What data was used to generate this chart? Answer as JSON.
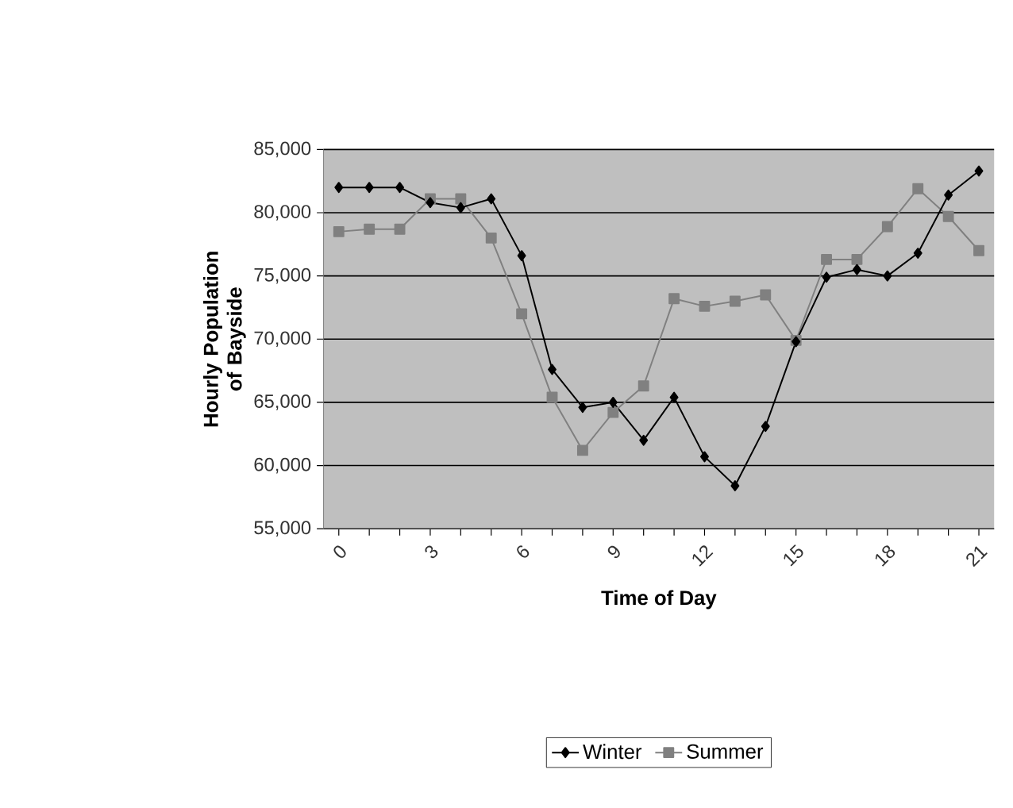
{
  "chart_data": {
    "type": "line",
    "xlabel": "Time of Day",
    "ylabel": "Hourly Population of Bayside",
    "categories": [
      "0",
      null,
      null,
      "3",
      null,
      null,
      "6",
      null,
      null,
      "9",
      null,
      null,
      "12",
      null,
      null,
      "15",
      null,
      null,
      "18",
      null,
      null,
      "21"
    ],
    "series": [
      {
        "name": "Winter",
        "color": "#000000",
        "marker": "diamond",
        "values": [
          82000,
          82000,
          82000,
          80800,
          80400,
          81100,
          76600,
          67600,
          64600,
          65000,
          62000,
          65400,
          60700,
          58400,
          63100,
          69800,
          74900,
          75500,
          75000,
          76800,
          81400,
          83300
        ]
      },
      {
        "name": "Summer",
        "color": "#808080",
        "marker": "square",
        "values": [
          78500,
          78700,
          78700,
          81100,
          81100,
          78000,
          72000,
          65400,
          61200,
          64200,
          66300,
          73200,
          72600,
          73000,
          73500,
          69900,
          76300,
          76300,
          78900,
          81900,
          79700,
          77000
        ]
      }
    ],
    "ylim": [
      55000,
      85000
    ],
    "yticks": [
      {
        "value": 55000,
        "label": "55,000"
      },
      {
        "value": 60000,
        "label": "60,000"
      },
      {
        "value": 65000,
        "label": "65,000"
      },
      {
        "value": 70000,
        "label": "70,000"
      },
      {
        "value": 75000,
        "label": "75,000"
      },
      {
        "value": 80000,
        "label": "80,000"
      },
      {
        "value": 85000,
        "label": "85,000"
      }
    ],
    "grid": "y",
    "legend": "bottom",
    "line_style": "solid"
  }
}
